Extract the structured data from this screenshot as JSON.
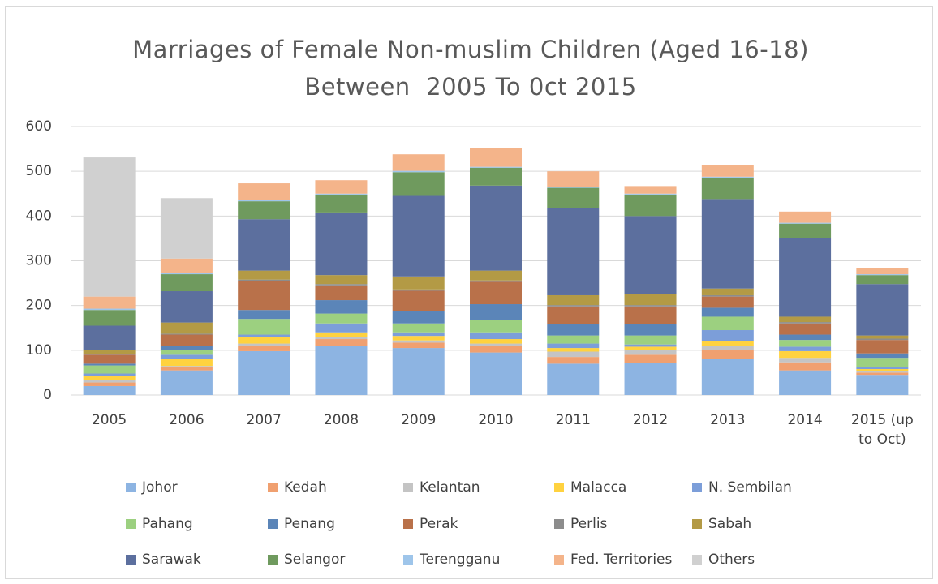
{
  "chart_data": {
    "type": "stacked_bar",
    "title": "Marriages of Female Non-muslim Children (Aged 16-18) Between  2005 To 0ct 2015",
    "categories": [
      "2005",
      "2006",
      "2007",
      "2008",
      "2009",
      "2010",
      "2011",
      "2012",
      "2013",
      "2014",
      "2015 (up to Oct)"
    ],
    "ylim": [
      0,
      600
    ],
    "yticks": [
      0,
      100,
      200,
      300,
      400,
      500,
      600
    ],
    "grid": true,
    "legend": "bottom",
    "series": [
      {
        "name": "Johor",
        "color": "#8db4e2",
        "values": [
          20,
          55,
          98,
          110,
          105,
          95,
          70,
          72,
          80,
          55,
          45
        ]
      },
      {
        "name": "Kedah",
        "color": "#f0a070",
        "values": [
          8,
          8,
          12,
          15,
          12,
          15,
          15,
          18,
          20,
          18,
          5
        ]
      },
      {
        "name": "Kelantan",
        "color": "#c4c4c4",
        "values": [
          5,
          2,
          5,
          5,
          5,
          5,
          12,
          10,
          10,
          10,
          3
        ]
      },
      {
        "name": "Malacca",
        "color": "#ffd23f",
        "values": [
          10,
          15,
          15,
          10,
          10,
          10,
          8,
          8,
          10,
          15,
          5
        ]
      },
      {
        "name": "N. Sembilan",
        "color": "#7c9ed9",
        "values": [
          5,
          10,
          5,
          20,
          8,
          15,
          10,
          5,
          25,
          10,
          5
        ]
      },
      {
        "name": "Pahang",
        "color": "#9cd080",
        "values": [
          18,
          10,
          35,
          22,
          20,
          28,
          18,
          20,
          30,
          15,
          20
        ]
      },
      {
        "name": "Penang",
        "color": "#5b85b8",
        "values": [
          4,
          10,
          20,
          30,
          28,
          35,
          25,
          25,
          20,
          12,
          10
        ]
      },
      {
        "name": "Perak",
        "color": "#b9714a",
        "values": [
          20,
          25,
          65,
          33,
          45,
          50,
          40,
          40,
          25,
          25,
          30
        ]
      },
      {
        "name": "Perlis",
        "color": "#8c8c8c",
        "values": [
          2,
          2,
          3,
          3,
          3,
          3,
          3,
          3,
          3,
          3,
          3
        ]
      },
      {
        "name": "Sabah",
        "color": "#b39a45",
        "values": [
          8,
          25,
          20,
          20,
          29,
          22,
          22,
          24,
          15,
          12,
          7
        ]
      },
      {
        "name": "Sarawak",
        "color": "#5c6f9e",
        "values": [
          55,
          70,
          115,
          140,
          180,
          190,
          195,
          175,
          200,
          175,
          115
        ]
      },
      {
        "name": "Selangor",
        "color": "#6f9a5e",
        "values": [
          35,
          38,
          40,
          40,
          53,
          40,
          45,
          48,
          48,
          33,
          20
        ]
      },
      {
        "name": "Terengganu",
        "color": "#9ec5ea",
        "values": [
          3,
          2,
          3,
          2,
          3,
          2,
          2,
          2,
          2,
          2,
          2
        ]
      },
      {
        "name": "Fed. Territories",
        "color": "#f4b48a",
        "values": [
          27,
          33,
          37,
          30,
          37,
          42,
          35,
          17,
          25,
          25,
          13
        ]
      },
      {
        "name": "Others",
        "color": "#d0d0d0",
        "values": [
          311,
          135,
          0,
          0,
          0,
          0,
          0,
          0,
          0,
          0,
          0
        ]
      }
    ]
  }
}
